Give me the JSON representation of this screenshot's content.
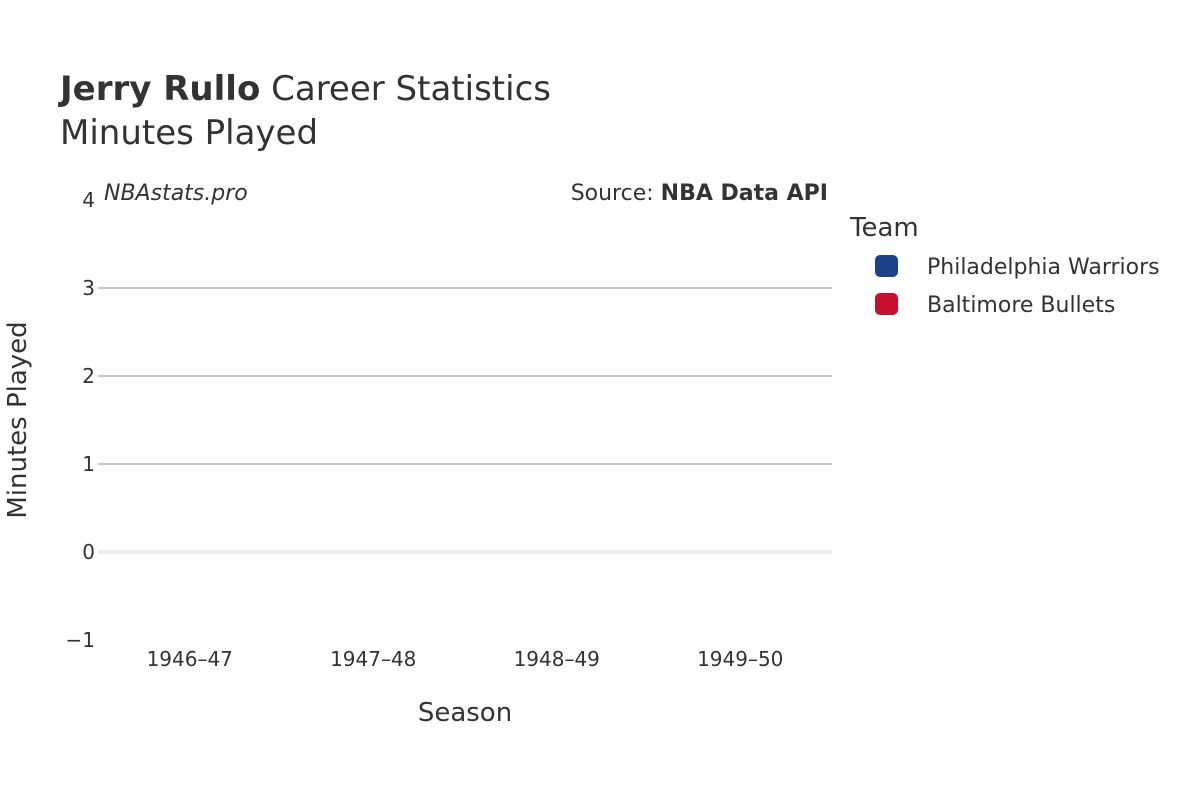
{
  "header": {
    "player_name": "Jerry Rullo",
    "title_rest": " Career Statistics",
    "subtitle": "Minutes Played"
  },
  "watermark": "NBAstats.pro",
  "source": {
    "prefix": "Source: ",
    "name": "NBA Data API"
  },
  "legend": {
    "title": "Team",
    "items": [
      {
        "label": "Philadelphia Warriors",
        "color": "#1d428a"
      },
      {
        "label": "Baltimore Bullets",
        "color": "#c8102e"
      }
    ]
  },
  "chart_data": {
    "type": "line",
    "xlabel": "Season",
    "ylabel": "Minutes Played",
    "categories": [
      "1946–47",
      "1947–48",
      "1948–49",
      "1949–50"
    ],
    "ylim": [
      -1,
      4
    ],
    "yticks": [
      -1,
      0,
      1,
      2,
      3,
      4
    ],
    "ytick_labels": [
      "−1",
      "0",
      "1",
      "2",
      "3",
      "4"
    ],
    "grid": true,
    "legend_position": "right",
    "series": [
      {
        "name": "Philadelphia Warriors",
        "values": [
          null,
          null,
          null,
          null
        ]
      },
      {
        "name": "Baltimore Bullets",
        "values": [
          null,
          null,
          null,
          null
        ]
      }
    ]
  }
}
